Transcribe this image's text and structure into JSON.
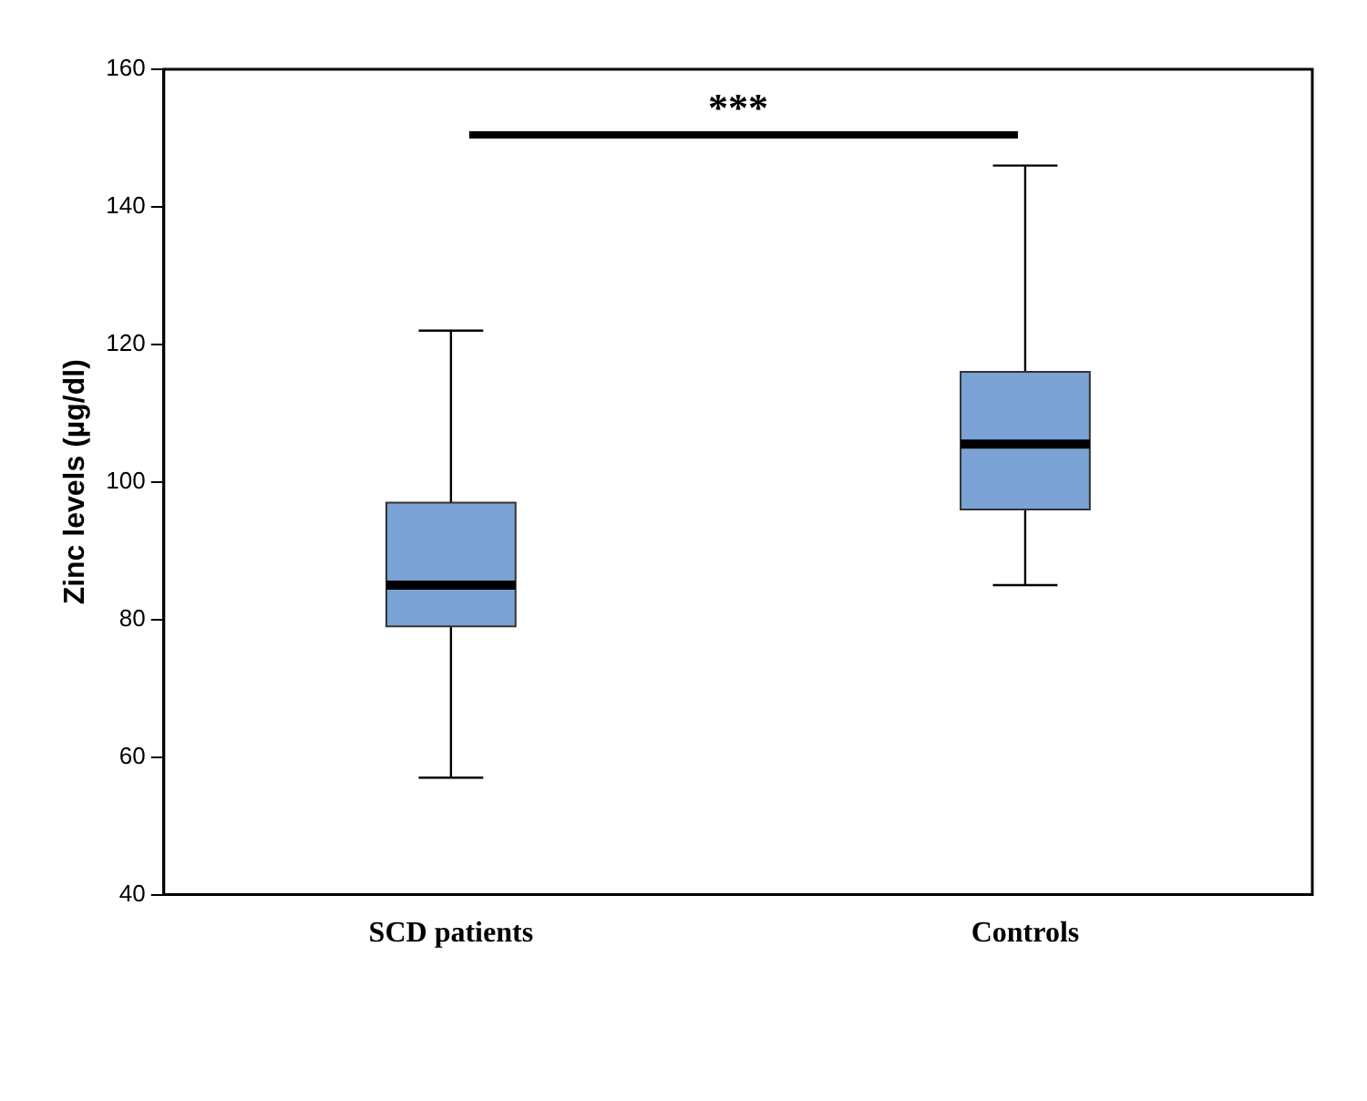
{
  "chart_data": {
    "type": "box",
    "ylabel": "Zinc levels (µg/dl)",
    "categories": [
      "SCD patients",
      "Controls"
    ],
    "boxes": [
      {
        "low": 57,
        "q1": 79,
        "median": 85,
        "q3": 97,
        "high": 122
      },
      {
        "low": 85,
        "q1": 96,
        "median": 105.5,
        "q3": 116,
        "high": 146
      }
    ],
    "color": "#7ba3d5",
    "ylim": [
      40,
      160
    ],
    "yticks": [
      40,
      60,
      80,
      100,
      120,
      140,
      160
    ],
    "grid": false,
    "legend": false,
    "annotations": [
      "***"
    ]
  }
}
